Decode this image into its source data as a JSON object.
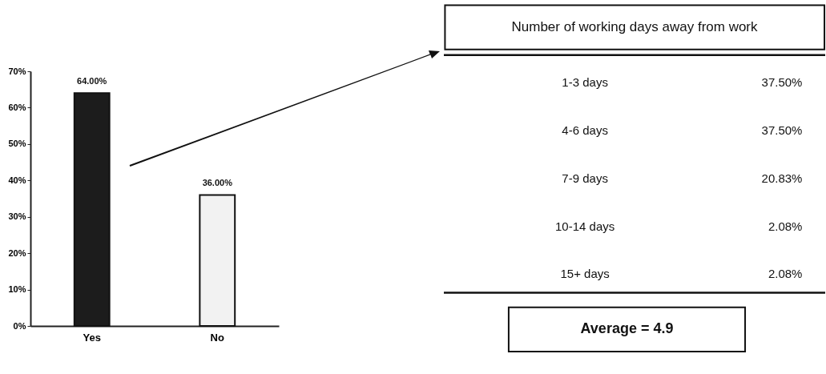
{
  "chart_data": [
    {
      "type": "bar",
      "categories": [
        "Yes",
        "No"
      ],
      "values": [
        64,
        36
      ],
      "colors": [
        "#1c1c1c",
        "#f2f2f2"
      ],
      "value_labels": [
        "64.00%",
        "36.00%"
      ],
      "ylim": [
        0,
        70
      ],
      "yticks": [
        {
          "value": 0,
          "label": "0%"
        },
        {
          "value": 10,
          "label": "10%"
        },
        {
          "value": 20,
          "label": "20%"
        },
        {
          "value": 30,
          "label": "30%"
        },
        {
          "value": 40,
          "label": "40%"
        },
        {
          "value": 50,
          "label": "50%"
        },
        {
          "value": 60,
          "label": "60%"
        },
        {
          "value": 70,
          "label": "70%"
        }
      ],
      "grid": false
    },
    {
      "type": "other",
      "title": "Number of working days away from work",
      "categories": [
        "1-3 days",
        "4-6 days",
        "7-9 days",
        "10-14 days",
        "15+ days"
      ],
      "value_labels": [
        "37.50%",
        "37.50%",
        "20.83%",
        "2.08%",
        "2.08%"
      ],
      "annotations": [
        "Average = 4.9"
      ]
    }
  ]
}
